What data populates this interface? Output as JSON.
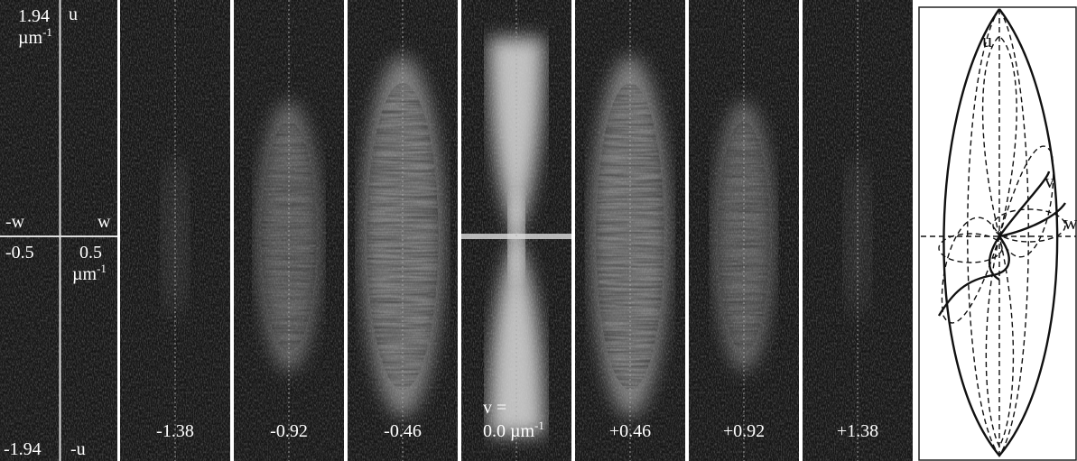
{
  "axis_panel": {
    "top_left": {
      "text": "1.94",
      "unit": "µm",
      "unit_exp": "-1"
    },
    "top_right": "u",
    "mid_left": "-w",
    "mid_right": "w",
    "lower_left": "-0.5",
    "lower_right": {
      "text": "0.5",
      "unit": "µm",
      "unit_exp": "-1"
    },
    "bottom_left": "-1.94",
    "bottom_right": "-u"
  },
  "panels": [
    {
      "label": "-1.38"
    },
    {
      "label": "-0.92"
    },
    {
      "label": "-0.46"
    },
    {
      "label": "v =",
      "label_line2": "0.0 µm",
      "label_exp": "-1"
    },
    {
      "label": "+0.46"
    },
    {
      "label": "+0.92"
    },
    {
      "label": "+1.38"
    }
  ],
  "diagram": {
    "u": "u",
    "v": "v",
    "w": "w"
  }
}
